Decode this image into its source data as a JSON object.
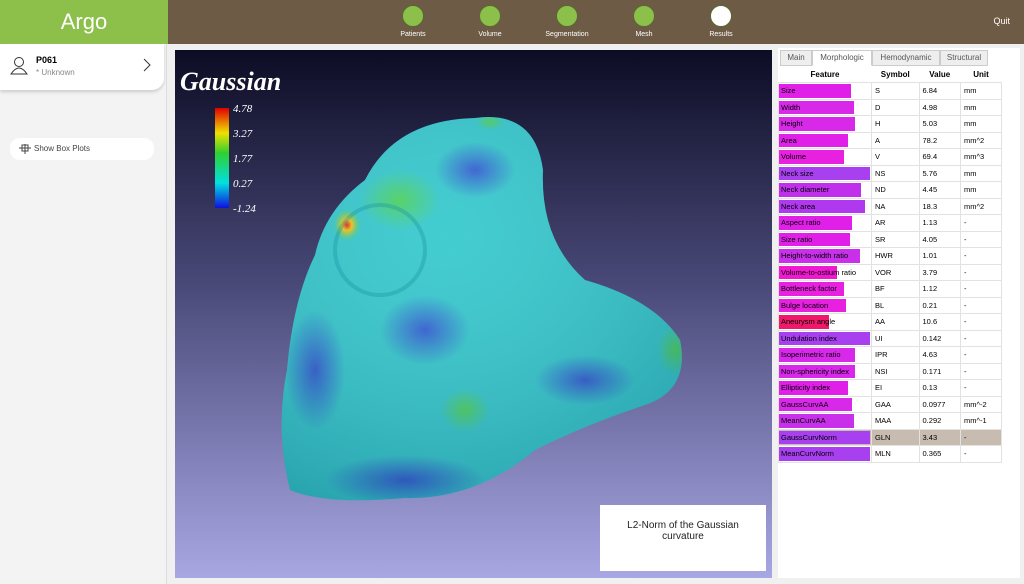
{
  "app": {
    "title": "Argo",
    "quit": "Quit"
  },
  "nav": [
    "Patients",
    "Volume",
    "Segmentation",
    "Mesh",
    "Results"
  ],
  "nav_active": 4,
  "patient": {
    "id": "P061",
    "status": "* Unknown"
  },
  "sidebar": {
    "button": "Show Box Plots"
  },
  "viewport": {
    "title": "Gaussian",
    "colorbar": {
      "ticks": [
        4.78,
        3.27,
        1.77,
        0.27,
        -1.24
      ]
    },
    "annotation": "L2-Norm of the Gaussian curvature"
  },
  "tabs": {
    "items": [
      "Main",
      "Morphologic",
      "Hemodynamic",
      "Structural"
    ],
    "active": 1
  },
  "table": {
    "columns": [
      "Feature",
      "Symbol",
      "Value",
      "Unit"
    ],
    "selected": 21,
    "rows": [
      {
        "feature": "Size",
        "symbol": "S",
        "value": "6.84",
        "unit": "mm",
        "bar": 0.78,
        "color": "#e020e8"
      },
      {
        "feature": "Width",
        "symbol": "D",
        "value": "4.98",
        "unit": "mm",
        "bar": 0.81,
        "color": "#d828ea"
      },
      {
        "feature": "Height",
        "symbol": "H",
        "value": "5.03",
        "unit": "mm",
        "bar": 0.83,
        "color": "#d828ea"
      },
      {
        "feature": "Area",
        "symbol": "A",
        "value": "78.2",
        "unit": "mm^2",
        "bar": 0.75,
        "color": "#e020e8"
      },
      {
        "feature": "Volume",
        "symbol": "V",
        "value": "69.4",
        "unit": "mm^3",
        "bar": 0.71,
        "color": "#e820e0"
      },
      {
        "feature": "Neck size",
        "symbol": "NS",
        "value": "5.76",
        "unit": "mm",
        "bar": 0.99,
        "color": "#a840f0"
      },
      {
        "feature": "Neck diameter",
        "symbol": "ND",
        "value": "4.45",
        "unit": "mm",
        "bar": 0.89,
        "color": "#c030ec"
      },
      {
        "feature": "Neck area",
        "symbol": "NA",
        "value": "18.3",
        "unit": "mm^2",
        "bar": 0.94,
        "color": "#b038ee"
      },
      {
        "feature": "Aspect ratio",
        "symbol": "AR",
        "value": "1.13",
        "unit": "-",
        "bar": 0.79,
        "color": "#e020e8"
      },
      {
        "feature": "Size ratio",
        "symbol": "SR",
        "value": "4.05",
        "unit": "-",
        "bar": 0.77,
        "color": "#e020e8"
      },
      {
        "feature": "Height-to-width ratio",
        "symbol": "HWR",
        "value": "1.01",
        "unit": "-",
        "bar": 0.88,
        "color": "#c830ea"
      },
      {
        "feature": "Volume-to-ostium ratio",
        "symbol": "VOR",
        "value": "3.79",
        "unit": "-",
        "bar": 0.63,
        "color": "#f018d0"
      },
      {
        "feature": "Bottleneck factor",
        "symbol": "BF",
        "value": "1.12",
        "unit": "-",
        "bar": 0.71,
        "color": "#e820e0"
      },
      {
        "feature": "Bulge location",
        "symbol": "BL",
        "value": "0.21",
        "unit": "-",
        "bar": 0.73,
        "color": "#e820e0"
      },
      {
        "feature": "Aneurysm angle",
        "symbol": "AA",
        "value": "10.6",
        "unit": "-",
        "bar": 0.54,
        "color": "#f0186a"
      },
      {
        "feature": "Undulation index",
        "symbol": "UI",
        "value": "0.142",
        "unit": "-",
        "bar": 0.99,
        "color": "#a840f0"
      },
      {
        "feature": "Isoperimetric ratio",
        "symbol": "IPR",
        "value": "4.63",
        "unit": "-",
        "bar": 0.83,
        "color": "#d828ea"
      },
      {
        "feature": "Non-sphericity index",
        "symbol": "NSI",
        "value": "0.171",
        "unit": "-",
        "bar": 0.83,
        "color": "#d828ea"
      },
      {
        "feature": "Ellipticity index",
        "symbol": "EI",
        "value": "0.13",
        "unit": "-",
        "bar": 0.75,
        "color": "#e020e8"
      },
      {
        "feature": "GaussCurvAA",
        "symbol": "GAA",
        "value": "0.0977",
        "unit": "mm^-2",
        "bar": 0.79,
        "color": "#d828ea"
      },
      {
        "feature": "MeanCurvAA",
        "symbol": "MAA",
        "value": "0.292",
        "unit": "mm^-1",
        "bar": 0.81,
        "color": "#c830ea"
      },
      {
        "feature": "GaussCurvNorm",
        "symbol": "GLN",
        "value": "3.43",
        "unit": "-",
        "bar": 0.99,
        "color": "#a840f0"
      },
      {
        "feature": "MeanCurvNorm",
        "symbol": "MLN",
        "value": "0.365",
        "unit": "-",
        "bar": 0.99,
        "color": "#a840f0"
      }
    ]
  }
}
